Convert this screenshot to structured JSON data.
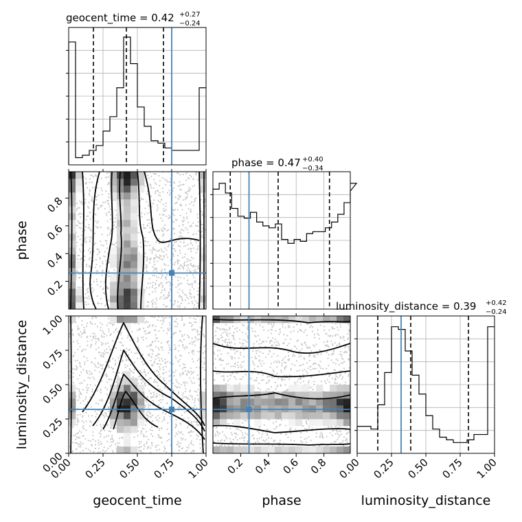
{
  "chart_data": {
    "type": "corner",
    "parameters": [
      "geocent_time",
      "phase",
      "luminosity_distance"
    ],
    "truth_color": "#4682b4",
    "truths": {
      "geocent_time": 0.75,
      "phase": 0.26,
      "luminosity_distance": 0.32
    },
    "titles": {
      "geocent_time": {
        "name": "geocent_time",
        "median": "0.42",
        "plus": "+0.27",
        "minus": "−0.24"
      },
      "phase": {
        "name": "phase",
        "median": "0.47",
        "plus": "+0.40",
        "minus": "−0.34"
      },
      "luminosity_distance": {
        "name": "luminosity_distance",
        "median": "0.39",
        "plus": "+0.42",
        "minus": "−0.24"
      }
    },
    "axes": {
      "geocent_time": {
        "range": [
          0,
          1
        ],
        "ticks": [
          "0.00",
          "0.25",
          "0.50",
          "0.75",
          "1.00"
        ]
      },
      "phase": {
        "range": [
          0.0,
          0.99
        ],
        "ticks": [
          "0.2",
          "0.4",
          "0.6",
          "0.8"
        ]
      },
      "luminosity_distance": {
        "range": [
          0,
          1
        ],
        "ticks": [
          "0.00",
          "0.25",
          "0.50",
          "0.75",
          "1.00"
        ]
      }
    },
    "marginals": {
      "geocent_time": {
        "bin_edges_start": 0,
        "bin_width": 0.05,
        "counts": [
          51,
          3,
          4,
          6,
          8,
          14,
          20,
          32,
          53,
          42,
          24,
          16,
          10,
          9,
          7,
          6,
          6,
          6,
          6,
          32
        ],
        "ymax": 57,
        "quantiles": [
          0.18,
          0.42,
          0.69
        ]
      },
      "phase": {
        "bin_edges_start": 0.0,
        "bin_width": 0.045,
        "counts": [
          62,
          65,
          60,
          52,
          48,
          47,
          50,
          45,
          43,
          42,
          44,
          36,
          34,
          36,
          35,
          39,
          40,
          40,
          42,
          45,
          49,
          55,
          61,
          65
        ],
        "ymax": 71,
        "quantiles": [
          0.125,
          0.47,
          0.84
        ]
      },
      "luminosity_distance": {
        "bin_edges_start": 0,
        "bin_width": 0.05,
        "counts": [
          10,
          10,
          9,
          18,
          30,
          47,
          46,
          38,
          29,
          22,
          14,
          9,
          6,
          5,
          4,
          4,
          5,
          7,
          7,
          47
        ],
        "ymax": 51,
        "quantiles": [
          0.15,
          0.39,
          0.81
        ]
      }
    }
  }
}
